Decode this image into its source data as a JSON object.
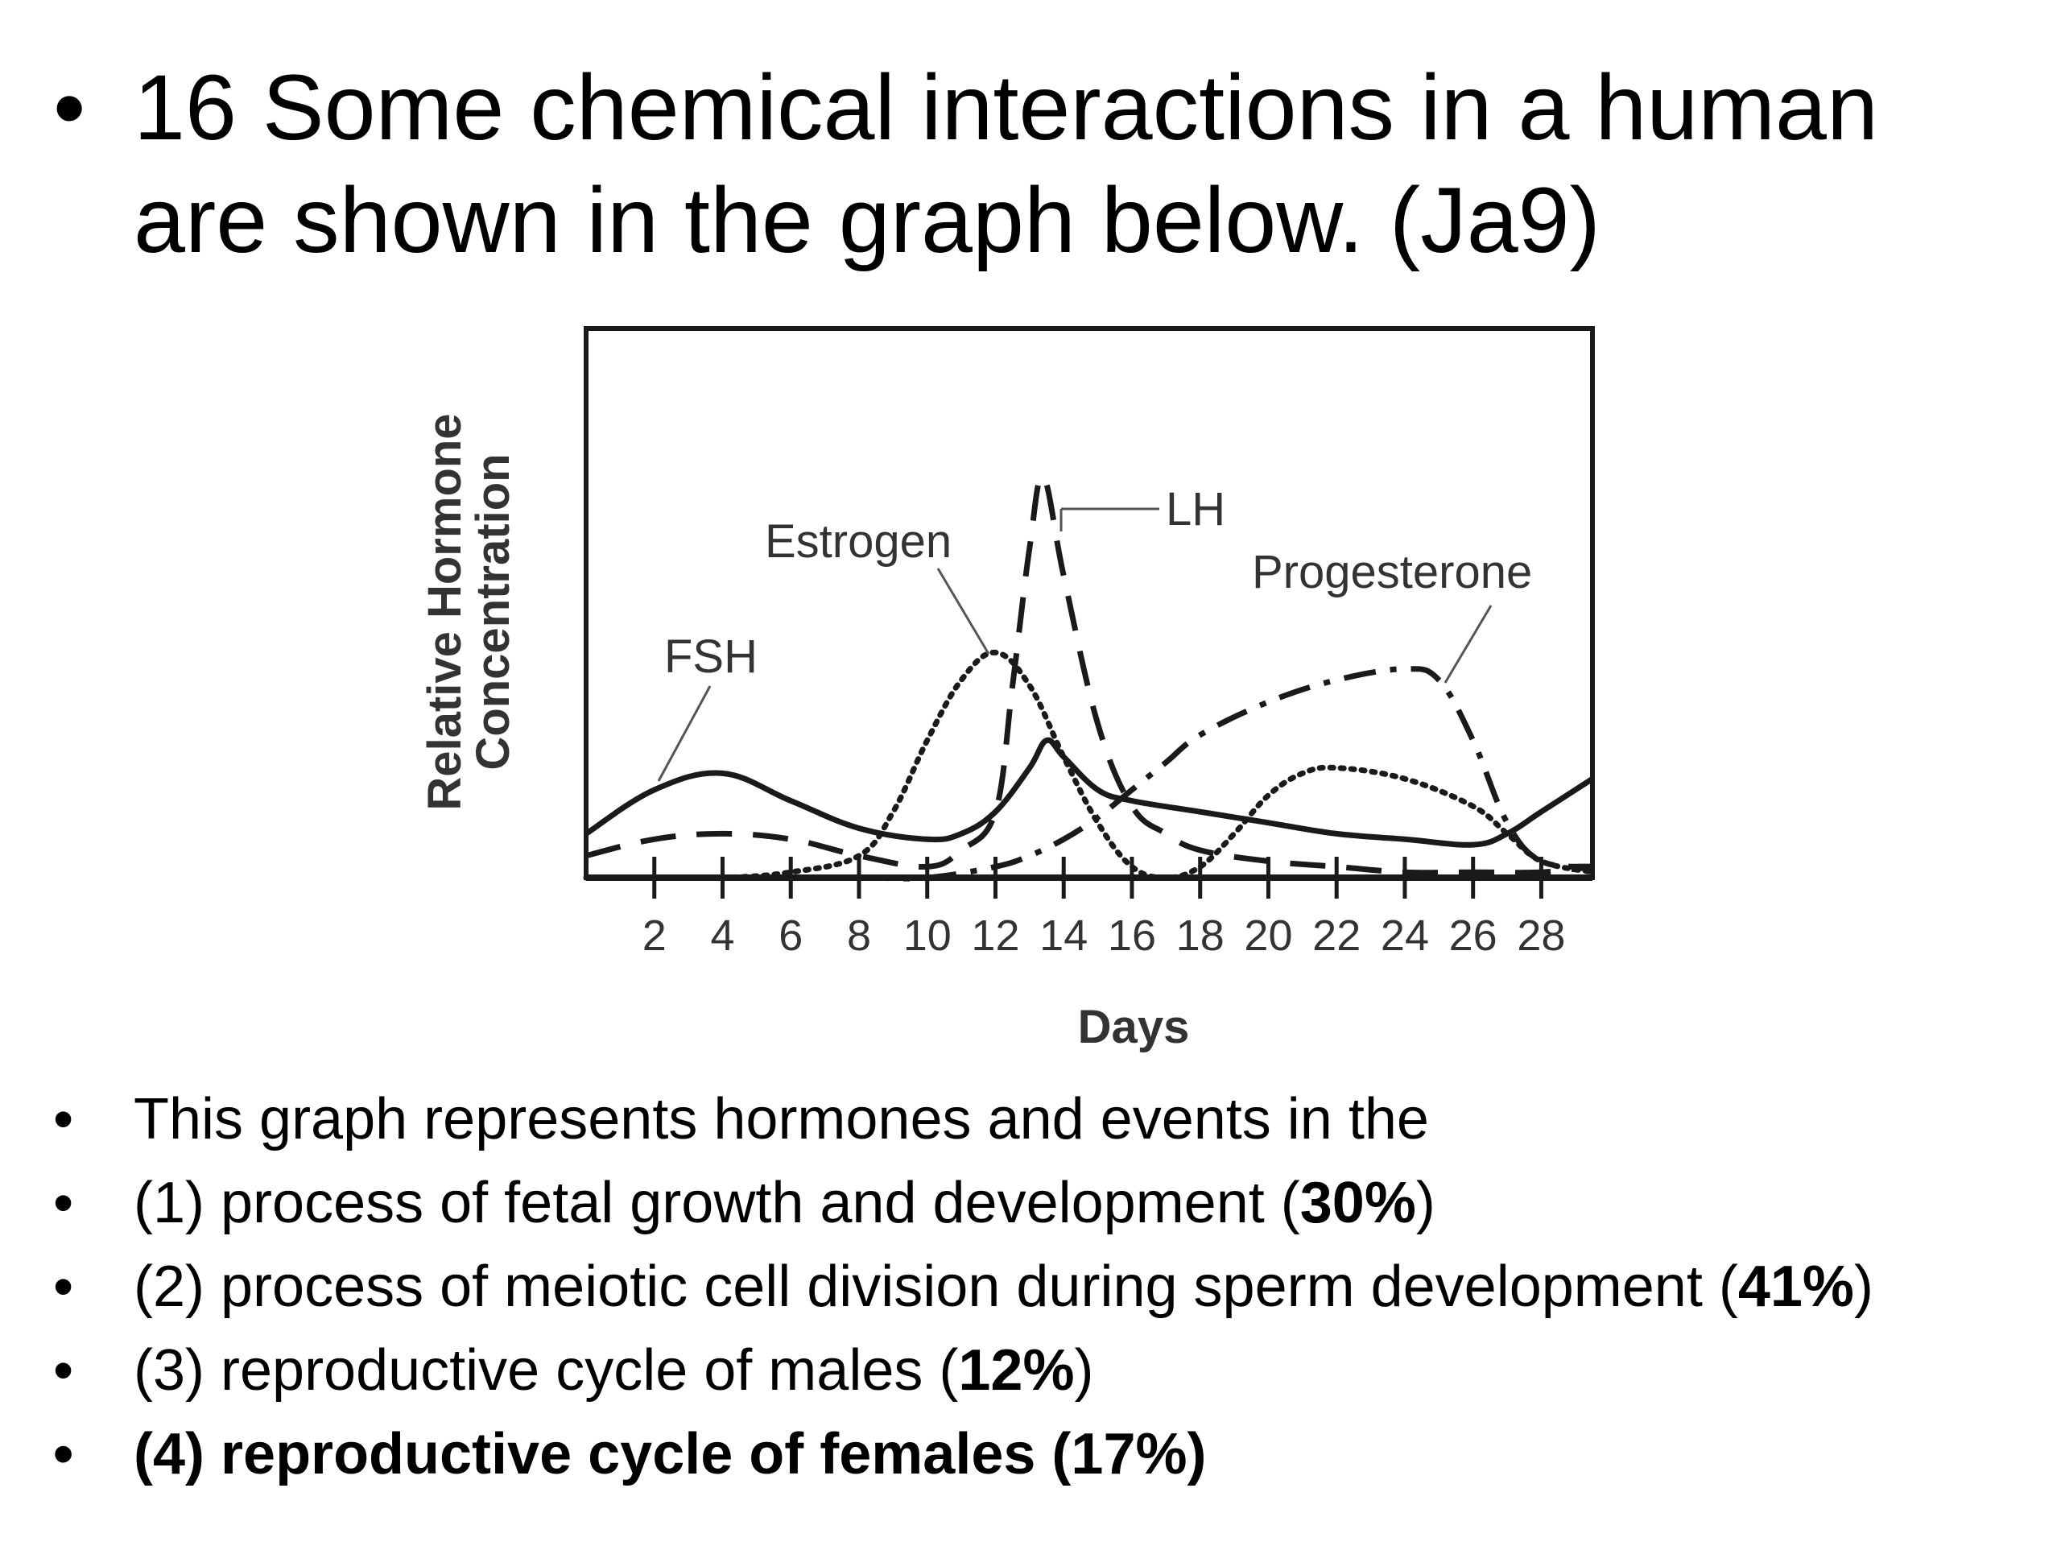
{
  "question": {
    "bullet": "•",
    "text": "16 Some chemical interactions in a human are shown in the graph below. (Ja9)"
  },
  "chart_data": {
    "type": "line",
    "xlabel": "Days",
    "ylabel_line1": "Relative Hormone",
    "ylabel_line2": "Concentration",
    "xlim": [
      0,
      29.5
    ],
    "ylim": [
      0,
      1
    ],
    "xticks": [
      2,
      4,
      6,
      8,
      10,
      12,
      14,
      16,
      18,
      20,
      22,
      24,
      26,
      28
    ],
    "xtick_labels": [
      "2",
      "4",
      "6",
      "8",
      "10",
      "12",
      "14",
      "16",
      "18",
      "20",
      "22",
      "24",
      "26",
      "28"
    ],
    "series": [
      {
        "name": "FSH",
        "style": "solid",
        "x": [
          0,
          2,
          4,
          6,
          8,
          10,
          11,
          12,
          13,
          13.5,
          14,
          15,
          16,
          18,
          20,
          22,
          24,
          26,
          27,
          28,
          29.5
        ],
        "y": [
          0.08,
          0.16,
          0.19,
          0.14,
          0.09,
          0.07,
          0.08,
          0.12,
          0.2,
          0.25,
          0.22,
          0.16,
          0.14,
          0.12,
          0.1,
          0.08,
          0.07,
          0.06,
          0.08,
          0.12,
          0.18
        ]
      },
      {
        "name": "LH",
        "style": "dashed",
        "x": [
          0,
          2,
          4,
          6,
          8,
          10,
          11,
          12,
          12.5,
          13,
          13.4,
          14,
          15,
          16,
          17,
          18,
          20,
          22,
          24,
          26,
          28,
          29.5
        ],
        "y": [
          0.04,
          0.07,
          0.08,
          0.07,
          0.04,
          0.02,
          0.05,
          0.12,
          0.35,
          0.6,
          0.73,
          0.55,
          0.28,
          0.13,
          0.08,
          0.05,
          0.03,
          0.02,
          0.01,
          0.01,
          0.01,
          0.02
        ]
      },
      {
        "name": "Estrogen",
        "style": "dotted",
        "x": [
          0,
          2,
          4,
          6,
          8,
          9,
          10,
          11,
          12,
          13,
          14,
          15,
          16,
          17,
          18,
          19,
          20,
          21,
          22,
          24,
          26,
          27,
          28,
          29.5
        ],
        "y": [
          0,
          0,
          0,
          0.01,
          0.04,
          0.12,
          0.25,
          0.36,
          0.41,
          0.35,
          0.22,
          0.1,
          0.02,
          0,
          0.02,
          0.08,
          0.15,
          0.19,
          0.2,
          0.18,
          0.13,
          0.08,
          0.03,
          0.01
        ]
      },
      {
        "name": "Progesterone",
        "style": "dashdot",
        "x": [
          0,
          4,
          8,
          10,
          12,
          13,
          14,
          15,
          16,
          17,
          18,
          20,
          22,
          24,
          25,
          26,
          27,
          28,
          29.5
        ],
        "y": [
          0,
          0,
          0,
          0,
          0.02,
          0.04,
          0.07,
          0.11,
          0.16,
          0.21,
          0.26,
          0.32,
          0.36,
          0.38,
          0.36,
          0.25,
          0.1,
          0.03,
          0.02
        ]
      }
    ],
    "annotations": [
      "FSH",
      "Estrogen",
      "LH",
      "Progesterone"
    ]
  },
  "options": [
    {
      "text": "This graph represents hormones and events in the",
      "pct": "",
      "correct": false
    },
    {
      "text": "(1) process of fetal growth and development (",
      "pct": "30%",
      "tail": ")",
      "correct": false
    },
    {
      "text": "(2) process of meiotic cell division during sperm development (",
      "pct": "41%",
      "tail": ")",
      "correct": false
    },
    {
      "text": "(3) reproductive cycle of males (",
      "pct": "12%",
      "tail": ")",
      "correct": false
    },
    {
      "text": "(4) reproductive cycle of females (",
      "pct": "17%",
      "tail": ")",
      "correct": true
    }
  ]
}
